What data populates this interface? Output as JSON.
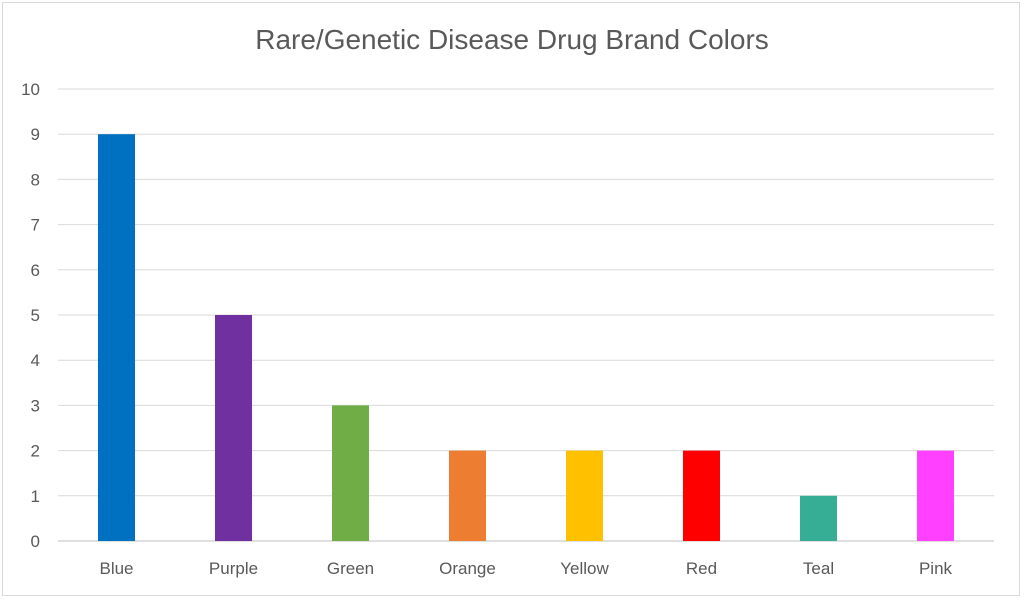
{
  "chart_data": {
    "type": "bar",
    "title": "Rare/Genetic Disease Drug Brand Colors",
    "xlabel": "",
    "ylabel": "",
    "categories": [
      "Blue",
      "Purple",
      "Green",
      "Orange",
      "Yellow",
      "Red",
      "Teal",
      "Pink"
    ],
    "values": [
      9,
      5,
      3,
      2,
      2,
      2,
      1,
      2
    ],
    "colors": [
      "#0070c0",
      "#7030a0",
      "#70ad47",
      "#ed7d31",
      "#ffc000",
      "#ff0000",
      "#36ae96",
      "#ff40ff"
    ],
    "ylim": [
      0,
      10
    ],
    "yticks": [
      0,
      1,
      2,
      3,
      4,
      5,
      6,
      7,
      8,
      9,
      10
    ],
    "grid": true,
    "legend": "none"
  }
}
